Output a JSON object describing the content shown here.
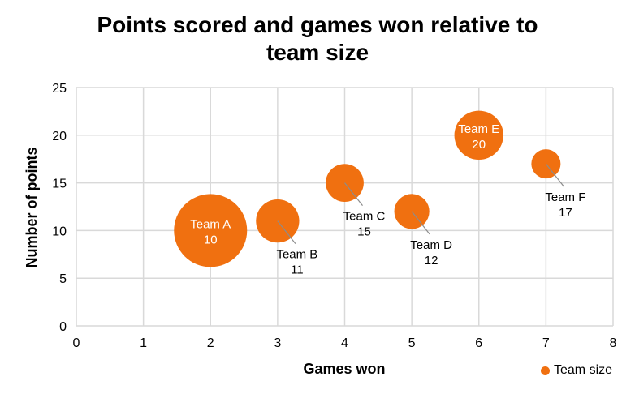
{
  "chart_data": {
    "type": "bubble",
    "title_lines": [
      "Points scored and games won relative to",
      "team size"
    ],
    "xlabel": "Games won",
    "ylabel": "Number of points",
    "xlim": [
      0,
      8
    ],
    "ylim": [
      0,
      25
    ],
    "x_ticks": [
      "0",
      "1",
      "2",
      "3",
      "4",
      "5",
      "6",
      "7",
      "8"
    ],
    "y_ticks": [
      "0",
      "5",
      "10",
      "15",
      "20",
      "25"
    ],
    "grid": true,
    "legend_position": "bottom-right",
    "bubble_color": "#F07010",
    "series": [
      {
        "name": "Team size",
        "points": [
          {
            "label": "Team A",
            "x": 2,
            "y": 10,
            "value_label": "10",
            "size": 10
          },
          {
            "label": "Team B",
            "x": 3,
            "y": 11,
            "value_label": "11",
            "size": 3.5
          },
          {
            "label": "Team C",
            "x": 4,
            "y": 15,
            "value_label": "15",
            "size": 2.7
          },
          {
            "label": "Team D",
            "x": 5,
            "y": 12,
            "value_label": "12",
            "size": 2.3
          },
          {
            "label": "Team E",
            "x": 6,
            "y": 20,
            "value_label": "20",
            "size": 4.5
          },
          {
            "label": "Team F",
            "x": 7,
            "y": 17,
            "value_label": "17",
            "size": 1.6
          }
        ]
      }
    ]
  }
}
